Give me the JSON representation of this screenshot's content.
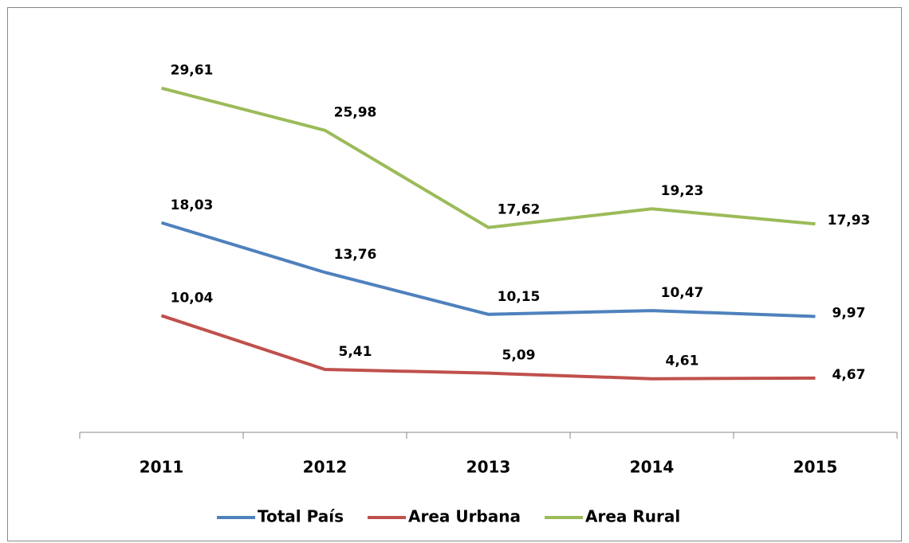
{
  "chart_data": {
    "type": "line",
    "categories": [
      "2011",
      "2012",
      "2013",
      "2014",
      "2015"
    ],
    "series": [
      {
        "name": "Total País",
        "color": "#4f81bd",
        "values": [
          18.03,
          13.76,
          10.15,
          10.47,
          9.97
        ],
        "value_labels": [
          "18,03",
          "13,76",
          "10,15",
          "10,47",
          "9,97"
        ]
      },
      {
        "name": "Area Urbana",
        "color": "#c0504d",
        "values": [
          10.04,
          5.41,
          5.09,
          4.61,
          4.67
        ],
        "value_labels": [
          "10,04",
          "5,41",
          "5,09",
          "4,61",
          "4,67"
        ]
      },
      {
        "name": "Area Rural",
        "color": "#9bbb59",
        "values": [
          29.61,
          25.98,
          17.62,
          19.23,
          17.93
        ],
        "value_labels": [
          "29,61",
          "25,98",
          "17,62",
          "19,23",
          "17,93"
        ]
      }
    ],
    "ylim": [
      0,
      35
    ],
    "legend": "bottom"
  }
}
